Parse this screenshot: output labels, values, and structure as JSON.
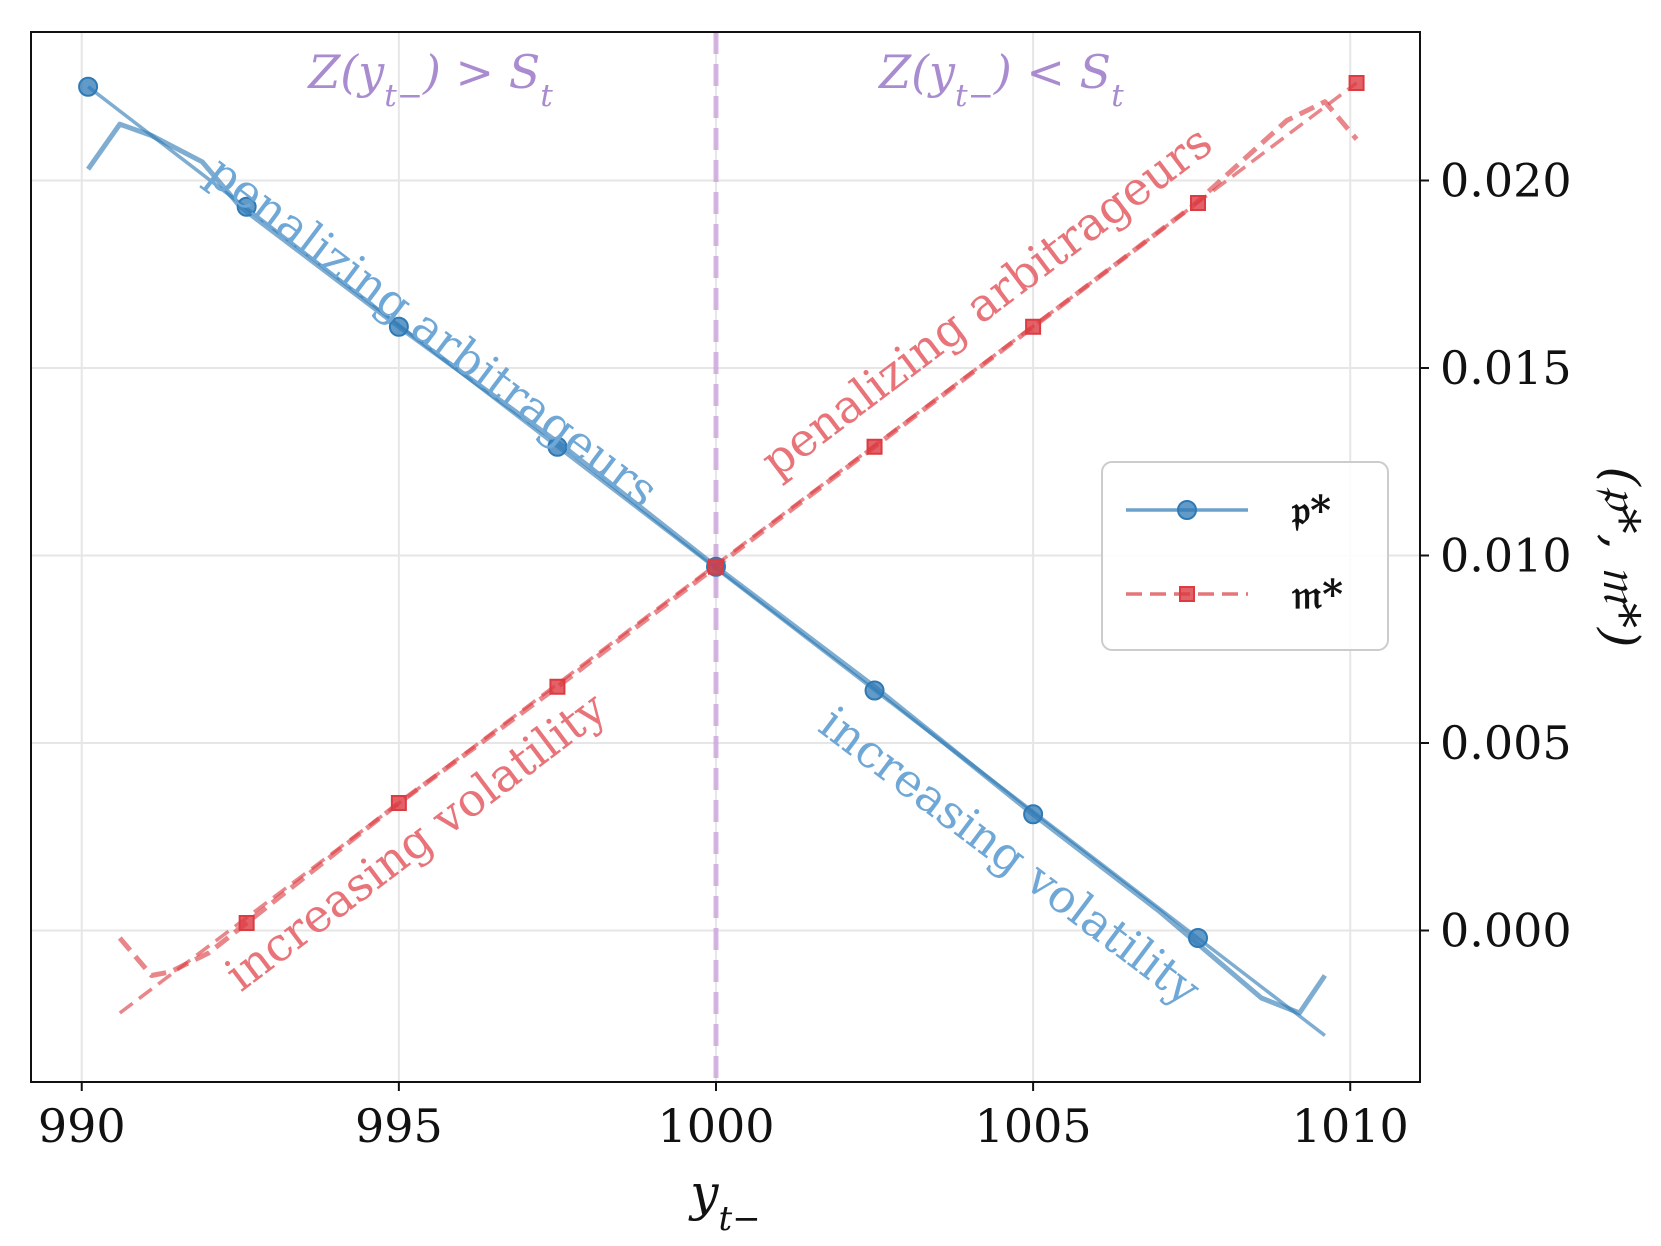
{
  "chart_data": {
    "type": "line",
    "xlabel": "y_{t−}",
    "ylabel": "(𝔭*, 𝔪*)",
    "xlim": [
      989.2,
      1011.1
    ],
    "ylim": [
      -0.00404,
      0.02396
    ],
    "x_ticks": [
      990,
      995,
      1000,
      1005,
      1010
    ],
    "x_tick_labels": [
      "990",
      "995",
      "1000",
      "1005",
      "1010"
    ],
    "y_ticks": [
      0.0,
      0.005,
      0.01,
      0.015,
      0.02
    ],
    "y_tick_labels": [
      "0.000",
      "0.005",
      "0.010",
      "0.015",
      "0.020"
    ],
    "grid": true,
    "legend_position": "center-right",
    "vline": {
      "x": 1000,
      "color": "#c9a0dc",
      "style": "dashed"
    },
    "region_labels": [
      {
        "text": "Z(y_{t−}) > S_t",
        "x": 995.5,
        "y": 0.0229
      },
      {
        "text": "Z(y_{t−}) < S_t",
        "x": 1004.5,
        "y": 0.0229
      }
    ],
    "annotations": [
      {
        "text": "penalizing arbitrageurs",
        "x": 995.5,
        "y": 0.0159,
        "angle": 37,
        "color": "#6fa8d6"
      },
      {
        "text": "penalizing arbitrageurs",
        "x": 1004.3,
        "y": 0.0167,
        "angle": -37,
        "color": "#e8747a"
      },
      {
        "text": "increasing volatility",
        "x": 995.3,
        "y": 0.0023,
        "angle": -37,
        "color": "#e8747a"
      },
      {
        "text": "increasing volatility",
        "x": 1004.6,
        "y": 0.0019,
        "angle": 37,
        "color": "#6fa8d6"
      }
    ],
    "series": [
      {
        "name": "𝔭*",
        "color": "#2f7ab5",
        "style": "solid",
        "marker": "circle",
        "lines": [
          {
            "width": 3.5,
            "x": [
              990.1,
              1009.6
            ],
            "y": [
              0.0225,
              -0.0028
            ]
          },
          {
            "width": 5,
            "x": [
              990.1,
              990.6,
              991.1,
              991.9,
              992.5,
              995.0,
              997.6,
              1000.0,
              1002.5,
              1005.0,
              1007.0,
              1008.6,
              1009.2,
              1009.6
            ],
            "y": [
              0.0203,
              0.0215,
              0.0212,
              0.0205,
              0.0193,
              0.0161,
              0.0129,
              0.0097,
              0.0065,
              0.0031,
              0.0005,
              -0.0018,
              -0.0022,
              -0.0012
            ]
          }
        ],
        "marker_x": [
          990.1,
          992.6,
          995.0,
          997.5,
          1000.0,
          1002.5,
          1005.0,
          1007.6
        ],
        "marker_y": [
          0.0225,
          0.0193,
          0.0161,
          0.0129,
          0.0097,
          0.0064,
          0.0031,
          -0.0002
        ]
      },
      {
        "name": "𝔪*",
        "color": "#dc3b42",
        "style": "dashed",
        "marker": "square",
        "lines": [
          {
            "width": 3.5,
            "x": [
              990.6,
              1010.1
            ],
            "y": [
              -0.0022,
              0.0226
            ]
          },
          {
            "width": 5,
            "x": [
              990.6,
              991.1,
              991.4,
              992.0,
              992.6,
              995.0,
              997.5,
              1000.0,
              1002.5,
              1005.0,
              1007.5,
              1009.0,
              1009.6,
              1010.1
            ],
            "y": [
              -0.0002,
              -0.0012,
              -0.0011,
              -0.0006,
              0.0002,
              0.0034,
              0.0065,
              0.0097,
              0.0129,
              0.0161,
              0.0193,
              0.0216,
              0.0221,
              0.0211
            ]
          }
        ],
        "marker_x": [
          992.6,
          995.0,
          997.5,
          1000.0,
          1002.5,
          1005.0,
          1007.6,
          1010.1
        ],
        "marker_y": [
          0.0002,
          0.0034,
          0.0065,
          0.0097,
          0.0129,
          0.0161,
          0.0194,
          0.0226
        ]
      }
    ]
  },
  "legend": {
    "p_label": "𝔭*",
    "m_label": "𝔪*"
  }
}
